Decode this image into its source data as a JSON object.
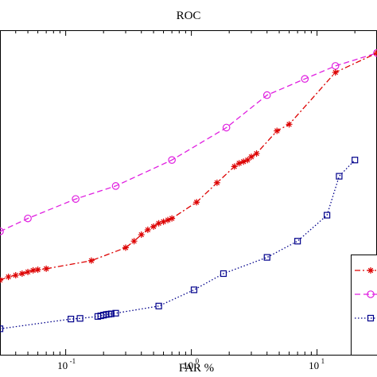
{
  "chart_data": {
    "type": "line",
    "title": "ROC",
    "xlabel": "FAR %",
    "ylabel": "",
    "x_scale": "log",
    "xlim": [
      0.03,
      30
    ],
    "ylim": [
      0,
      1
    ],
    "grid": false,
    "legend_position": "bottom-right",
    "x_ticks": [
      {
        "value": 0.1,
        "base": "10",
        "exp": "-1"
      },
      {
        "value": 1,
        "base": "10",
        "exp": "0"
      },
      {
        "value": 10,
        "base": "10",
        "exp": "1"
      }
    ],
    "series": [
      {
        "color": "#e020e0",
        "line_style": "dashed",
        "marker": "circle",
        "x": [
          0.03,
          0.05,
          0.12,
          0.25,
          0.7,
          1.9,
          4.0,
          8.0,
          14.0,
          30.0
        ],
        "y": [
          0.38,
          0.42,
          0.48,
          0.52,
          0.6,
          0.7,
          0.8,
          0.85,
          0.89,
          0.93
        ]
      },
      {
        "color": "#dd0000",
        "line_style": "dashdot",
        "marker": "asterisk",
        "x": [
          0.03,
          0.035,
          0.04,
          0.045,
          0.05,
          0.055,
          0.06,
          0.07,
          0.16,
          0.3,
          0.35,
          0.4,
          0.45,
          0.5,
          0.55,
          0.6,
          0.65,
          0.7,
          1.1,
          1.6,
          2.2,
          2.4,
          2.6,
          2.8,
          3.0,
          3.3,
          4.8,
          6.0,
          14.0,
          30.0
        ],
        "y": [
          0.23,
          0.24,
          0.245,
          0.25,
          0.255,
          0.26,
          0.262,
          0.265,
          0.29,
          0.33,
          0.35,
          0.37,
          0.385,
          0.395,
          0.405,
          0.41,
          0.415,
          0.42,
          0.47,
          0.53,
          0.58,
          0.59,
          0.595,
          0.6,
          0.61,
          0.62,
          0.69,
          0.71,
          0.87,
          0.93
        ]
      },
      {
        "color": "#00008b",
        "line_style": "dotted",
        "marker": "square",
        "x": [
          0.03,
          0.11,
          0.13,
          0.18,
          0.19,
          0.2,
          0.21,
          0.22,
          0.23,
          0.25,
          0.55,
          1.05,
          1.8,
          4.0,
          7.0,
          12.0,
          15.0,
          20.0
        ],
        "y": [
          0.08,
          0.11,
          0.112,
          0.118,
          0.12,
          0.122,
          0.124,
          0.125,
          0.126,
          0.128,
          0.15,
          0.2,
          0.25,
          0.3,
          0.35,
          0.43,
          0.55,
          0.6
        ]
      }
    ]
  }
}
